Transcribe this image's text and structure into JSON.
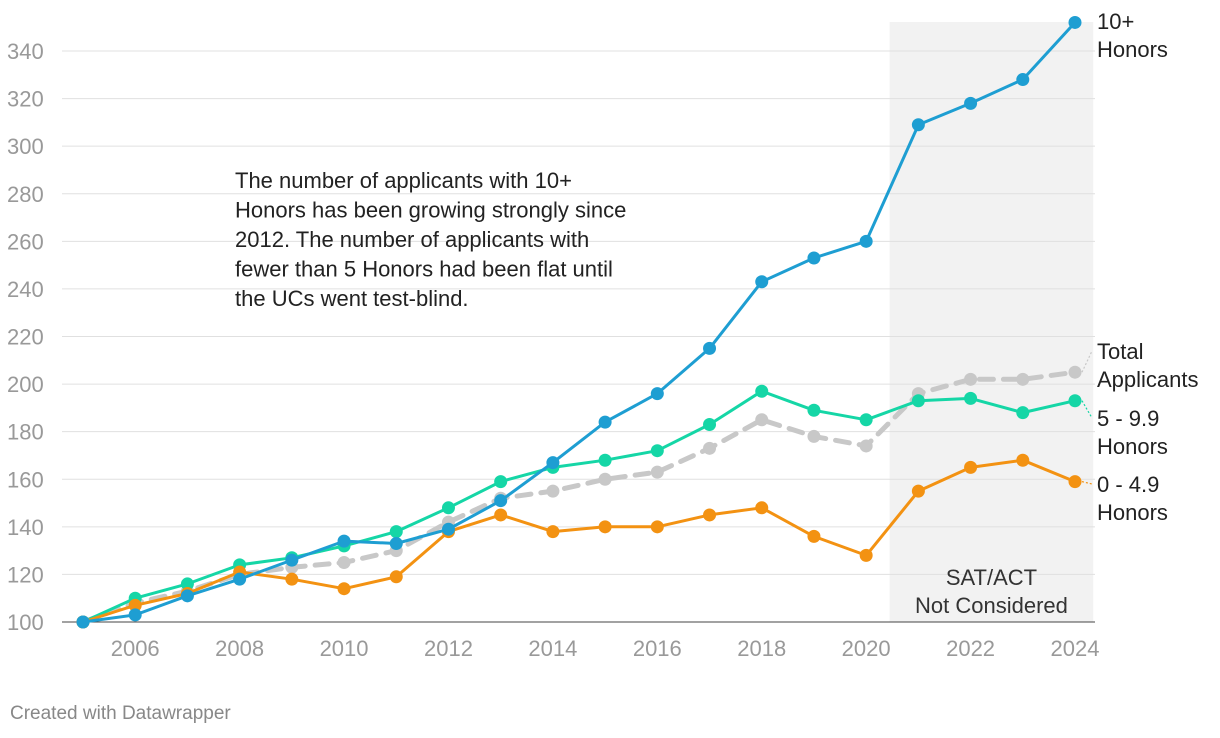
{
  "chart_data": {
    "type": "line",
    "title": "",
    "xlabel": "",
    "ylabel": "",
    "x": [
      2005,
      2006,
      2007,
      2008,
      2009,
      2010,
      2011,
      2012,
      2013,
      2014,
      2015,
      2016,
      2017,
      2018,
      2019,
      2020,
      2021,
      2022,
      2023,
      2024
    ],
    "xlim": [
      2005,
      2024
    ],
    "ylim": [
      100,
      350
    ],
    "x_ticks": [
      "2006",
      "2008",
      "2010",
      "2012",
      "2014",
      "2016",
      "2018",
      "2020",
      "2022",
      "2024"
    ],
    "y_ticks": [
      "100",
      "120",
      "140",
      "160",
      "180",
      "200",
      "220",
      "240",
      "260",
      "280",
      "300",
      "320",
      "340"
    ],
    "grid": "horizontal",
    "series": [
      {
        "name": "Total Applicants",
        "label_lines": [
          "Total",
          "Applicants"
        ],
        "color": "#c8c8c8",
        "dashed": true,
        "values": [
          100,
          108,
          113,
          120,
          123,
          125,
          130,
          142,
          152,
          155,
          160,
          163,
          173,
          185,
          178,
          174,
          196,
          202,
          202,
          205
        ]
      },
      {
        "name": "5 - 9.9 Honors",
        "label_lines": [
          "5 - 9.9",
          "Honors"
        ],
        "color": "#15d6a6",
        "dashed": false,
        "values": [
          100,
          110,
          116,
          124,
          127,
          132,
          138,
          148,
          159,
          165,
          168,
          172,
          183,
          197,
          189,
          185,
          193,
          194,
          188,
          193
        ]
      },
      {
        "name": "0 - 4.9 Honors",
        "label_lines": [
          "0 - 4.9",
          "Honors"
        ],
        "color": "#f39212",
        "dashed": false,
        "values": [
          100,
          107,
          112,
          121,
          118,
          114,
          119,
          138,
          145,
          138,
          140,
          140,
          145,
          148,
          136,
          128,
          155,
          165,
          168,
          159
        ]
      },
      {
        "name": "10+ Honors",
        "label_lines": [
          "10+",
          "Honors"
        ],
        "color": "#1e9ed2",
        "dashed": false,
        "values": [
          100,
          103,
          111,
          118,
          126,
          134,
          133,
          139,
          151,
          167,
          184,
          196,
          215,
          243,
          253,
          260,
          309,
          318,
          328,
          352
        ]
      }
    ],
    "shaded_region": {
      "from": 2020.45,
      "to": 2024.35,
      "label_lines": [
        "SAT/ACT",
        "Not Considered"
      ]
    },
    "annotation_lines": [
      "The number of applicants with 10+",
      "Honors has been growing strongly since",
      "2012. The number of applicants with",
      "fewer than 5 Honors had been flat until",
      "the UCs went test-blind."
    ]
  },
  "footer": {
    "credit": "Created with Datawrapper"
  }
}
